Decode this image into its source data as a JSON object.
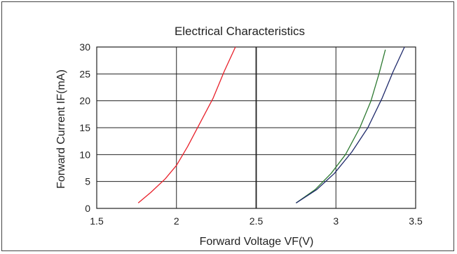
{
  "chart_data": {
    "type": "line",
    "title": "Electrical Characteristics",
    "xlabel": "Forward Voltage VF(V)",
    "ylabel": "Forward Current IF(mA)",
    "xlim": [
      1.5,
      3.5
    ],
    "ylim": [
      0,
      30
    ],
    "xticks": [
      "1.5",
      "2",
      "2.5",
      "3",
      "3.5"
    ],
    "yticks": [
      "0",
      "5",
      "10",
      "15",
      "20",
      "25",
      "30"
    ],
    "grid": true,
    "series": [
      {
        "color": "#e8202a",
        "points": [
          [
            1.76,
            1
          ],
          [
            1.84,
            3
          ],
          [
            1.93,
            5.5
          ],
          [
            2.0,
            8
          ],
          [
            2.07,
            11.5
          ],
          [
            2.15,
            16
          ],
          [
            2.23,
            20.5
          ],
          [
            2.3,
            25.5
          ],
          [
            2.37,
            30
          ]
        ]
      },
      {
        "color": "#2e7a32",
        "points": [
          [
            2.75,
            1
          ],
          [
            2.87,
            3.5
          ],
          [
            2.97,
            6.5
          ],
          [
            3.06,
            10
          ],
          [
            3.15,
            15
          ],
          [
            3.22,
            20
          ],
          [
            3.27,
            25
          ],
          [
            3.31,
            29.5
          ]
        ]
      },
      {
        "color": "#1f2a6b",
        "points": [
          [
            2.75,
            1
          ],
          [
            2.88,
            3.5
          ],
          [
            2.99,
            6.5
          ],
          [
            3.1,
            10.5
          ],
          [
            3.2,
            15
          ],
          [
            3.29,
            20.5
          ],
          [
            3.36,
            25.5
          ],
          [
            3.43,
            30
          ]
        ]
      }
    ]
  }
}
